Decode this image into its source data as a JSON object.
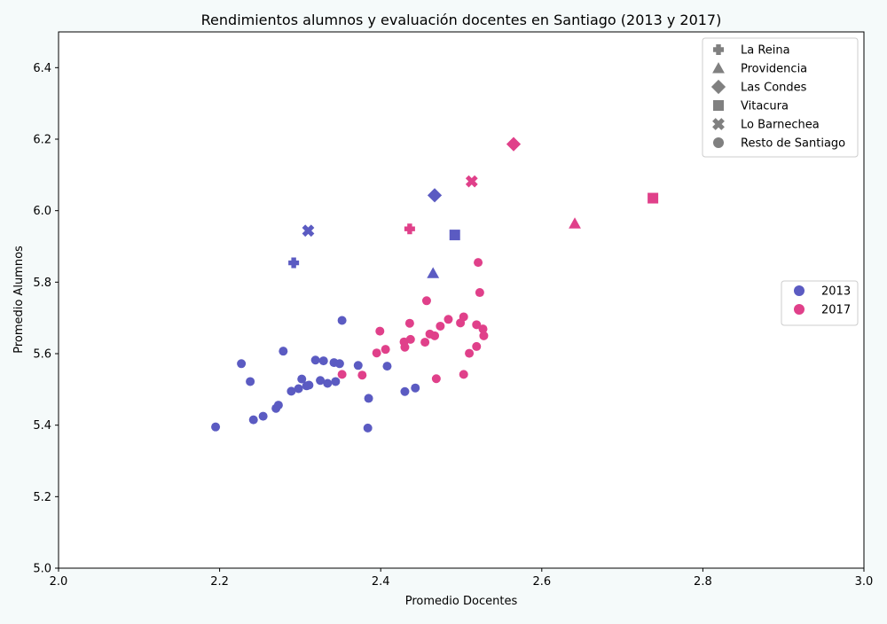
{
  "chart_data": {
    "type": "scatter",
    "title": "Rendimientos alumnos y evaluación docentes en Santiago (2013 y 2017)",
    "xlabel": "Promedio Docentes",
    "ylabel": "Promedio Alumnos",
    "xlim": [
      2.0,
      3.0
    ],
    "ylim": [
      5.0,
      6.5
    ],
    "xticks": [
      "2.0",
      "2.2",
      "2.4",
      "2.6",
      "2.8",
      "3.0"
    ],
    "yticks": [
      "5.0",
      "5.2",
      "5.4",
      "5.6",
      "5.8",
      "6.0",
      "6.2",
      "6.4"
    ],
    "grid": false,
    "colors": {
      "2013": "#5b5bc2",
      "2017": "#e0408a",
      "legend_marker": "#808080"
    },
    "legend_markers": {
      "position": "top-right",
      "entries": [
        {
          "label": "La Reina",
          "marker": "plus"
        },
        {
          "label": "Providencia",
          "marker": "triangle"
        },
        {
          "label": "Las Condes",
          "marker": "diamond"
        },
        {
          "label": "Vitacura",
          "marker": "square"
        },
        {
          "label": "Lo Barnechea",
          "marker": "x"
        },
        {
          "label": "Resto de Santiago",
          "marker": "circle"
        }
      ]
    },
    "legend_years": {
      "position": "center-right",
      "entries": [
        {
          "label": "2013",
          "color": "#5b5bc2"
        },
        {
          "label": "2017",
          "color": "#e0408a"
        }
      ]
    },
    "series": [
      {
        "name": "2013",
        "color": "#5b5bc2",
        "points": [
          {
            "commune": "La Reina",
            "marker": "plus",
            "x": 2.292,
            "y": 5.854
          },
          {
            "commune": "Providencia",
            "marker": "triangle",
            "x": 2.465,
            "y": 5.825
          },
          {
            "commune": "Las Condes",
            "marker": "diamond",
            "x": 2.467,
            "y": 6.043
          },
          {
            "commune": "Vitacura",
            "marker": "square",
            "x": 2.492,
            "y": 5.932
          },
          {
            "commune": "Lo Barnechea",
            "marker": "x",
            "x": 2.31,
            "y": 5.944
          },
          {
            "commune": "Resto de Santiago",
            "marker": "circle",
            "x": 2.195,
            "y": 5.395
          },
          {
            "commune": "Resto de Santiago",
            "marker": "circle",
            "x": 2.227,
            "y": 5.572
          },
          {
            "commune": "Resto de Santiago",
            "marker": "circle",
            "x": 2.238,
            "y": 5.522
          },
          {
            "commune": "Resto de Santiago",
            "marker": "circle",
            "x": 2.242,
            "y": 5.415
          },
          {
            "commune": "Resto de Santiago",
            "marker": "circle",
            "x": 2.254,
            "y": 5.425
          },
          {
            "commune": "Resto de Santiago",
            "marker": "circle",
            "x": 2.27,
            "y": 5.447
          },
          {
            "commune": "Resto de Santiago",
            "marker": "circle",
            "x": 2.273,
            "y": 5.456
          },
          {
            "commune": "Resto de Santiago",
            "marker": "circle",
            "x": 2.279,
            "y": 5.607
          },
          {
            "commune": "Resto de Santiago",
            "marker": "circle",
            "x": 2.289,
            "y": 5.495
          },
          {
            "commune": "Resto de Santiago",
            "marker": "circle",
            "x": 2.298,
            "y": 5.502
          },
          {
            "commune": "Resto de Santiago",
            "marker": "circle",
            "x": 2.302,
            "y": 5.529
          },
          {
            "commune": "Resto de Santiago",
            "marker": "circle",
            "x": 2.308,
            "y": 5.51
          },
          {
            "commune": "Resto de Santiago",
            "marker": "circle",
            "x": 2.311,
            "y": 5.512
          },
          {
            "commune": "Resto de Santiago",
            "marker": "circle",
            "x": 2.319,
            "y": 5.582
          },
          {
            "commune": "Resto de Santiago",
            "marker": "circle",
            "x": 2.325,
            "y": 5.525
          },
          {
            "commune": "Resto de Santiago",
            "marker": "circle",
            "x": 2.329,
            "y": 5.58
          },
          {
            "commune": "Resto de Santiago",
            "marker": "circle",
            "x": 2.334,
            "y": 5.517
          },
          {
            "commune": "Resto de Santiago",
            "marker": "circle",
            "x": 2.342,
            "y": 5.575
          },
          {
            "commune": "Resto de Santiago",
            "marker": "circle",
            "x": 2.344,
            "y": 5.522
          },
          {
            "commune": "Resto de Santiago",
            "marker": "circle",
            "x": 2.349,
            "y": 5.572
          },
          {
            "commune": "Resto de Santiago",
            "marker": "circle",
            "x": 2.352,
            "y": 5.693
          },
          {
            "commune": "Resto de Santiago",
            "marker": "circle",
            "x": 2.372,
            "y": 5.567
          },
          {
            "commune": "Resto de Santiago",
            "marker": "circle",
            "x": 2.384,
            "y": 5.392
          },
          {
            "commune": "Resto de Santiago",
            "marker": "circle",
            "x": 2.385,
            "y": 5.475
          },
          {
            "commune": "Resto de Santiago",
            "marker": "circle",
            "x": 2.408,
            "y": 5.565
          },
          {
            "commune": "Resto de Santiago",
            "marker": "circle",
            "x": 2.43,
            "y": 5.494
          },
          {
            "commune": "Resto de Santiago",
            "marker": "circle",
            "x": 2.443,
            "y": 5.504
          }
        ]
      },
      {
        "name": "2017",
        "color": "#e0408a",
        "points": [
          {
            "commune": "La Reina",
            "marker": "plus",
            "x": 2.436,
            "y": 5.949
          },
          {
            "commune": "Providencia",
            "marker": "triangle",
            "x": 2.641,
            "y": 5.964
          },
          {
            "commune": "Las Condes",
            "marker": "diamond",
            "x": 2.565,
            "y": 6.186
          },
          {
            "commune": "Vitacura",
            "marker": "square",
            "x": 2.738,
            "y": 6.035
          },
          {
            "commune": "Lo Barnechea",
            "marker": "x",
            "x": 2.513,
            "y": 6.082
          },
          {
            "commune": "Resto de Santiago",
            "marker": "circle",
            "x": 2.352,
            "y": 5.542
          },
          {
            "commune": "Resto de Santiago",
            "marker": "circle",
            "x": 2.377,
            "y": 5.54
          },
          {
            "commune": "Resto de Santiago",
            "marker": "circle",
            "x": 2.395,
            "y": 5.602
          },
          {
            "commune": "Resto de Santiago",
            "marker": "circle",
            "x": 2.399,
            "y": 5.663
          },
          {
            "commune": "Resto de Santiago",
            "marker": "circle",
            "x": 2.406,
            "y": 5.612
          },
          {
            "commune": "Resto de Santiago",
            "marker": "circle",
            "x": 2.429,
            "y": 5.633
          },
          {
            "commune": "Resto de Santiago",
            "marker": "circle",
            "x": 2.43,
            "y": 5.618
          },
          {
            "commune": "Resto de Santiago",
            "marker": "circle",
            "x": 2.436,
            "y": 5.685
          },
          {
            "commune": "Resto de Santiago",
            "marker": "circle",
            "x": 2.437,
            "y": 5.64
          },
          {
            "commune": "Resto de Santiago",
            "marker": "circle",
            "x": 2.455,
            "y": 5.632
          },
          {
            "commune": "Resto de Santiago",
            "marker": "circle",
            "x": 2.457,
            "y": 5.748
          },
          {
            "commune": "Resto de Santiago",
            "marker": "circle",
            "x": 2.461,
            "y": 5.655
          },
          {
            "commune": "Resto de Santiago",
            "marker": "circle",
            "x": 2.467,
            "y": 5.65
          },
          {
            "commune": "Resto de Santiago",
            "marker": "circle",
            "x": 2.469,
            "y": 5.53
          },
          {
            "commune": "Resto de Santiago",
            "marker": "circle",
            "x": 2.474,
            "y": 5.677
          },
          {
            "commune": "Resto de Santiago",
            "marker": "circle",
            "x": 2.484,
            "y": 5.696
          },
          {
            "commune": "Resto de Santiago",
            "marker": "circle",
            "x": 2.499,
            "y": 5.686
          },
          {
            "commune": "Resto de Santiago",
            "marker": "circle",
            "x": 2.503,
            "y": 5.703
          },
          {
            "commune": "Resto de Santiago",
            "marker": "circle",
            "x": 2.503,
            "y": 5.542
          },
          {
            "commune": "Resto de Santiago",
            "marker": "circle",
            "x": 2.51,
            "y": 5.601
          },
          {
            "commune": "Resto de Santiago",
            "marker": "circle",
            "x": 2.519,
            "y": 5.681
          },
          {
            "commune": "Resto de Santiago",
            "marker": "circle",
            "x": 2.519,
            "y": 5.62
          },
          {
            "commune": "Resto de Santiago",
            "marker": "circle",
            "x": 2.521,
            "y": 5.855
          },
          {
            "commune": "Resto de Santiago",
            "marker": "circle",
            "x": 2.523,
            "y": 5.771
          },
          {
            "commune": "Resto de Santiago",
            "marker": "circle",
            "x": 2.527,
            "y": 5.669
          },
          {
            "commune": "Resto de Santiago",
            "marker": "circle",
            "x": 2.528,
            "y": 5.65
          }
        ]
      }
    ]
  }
}
